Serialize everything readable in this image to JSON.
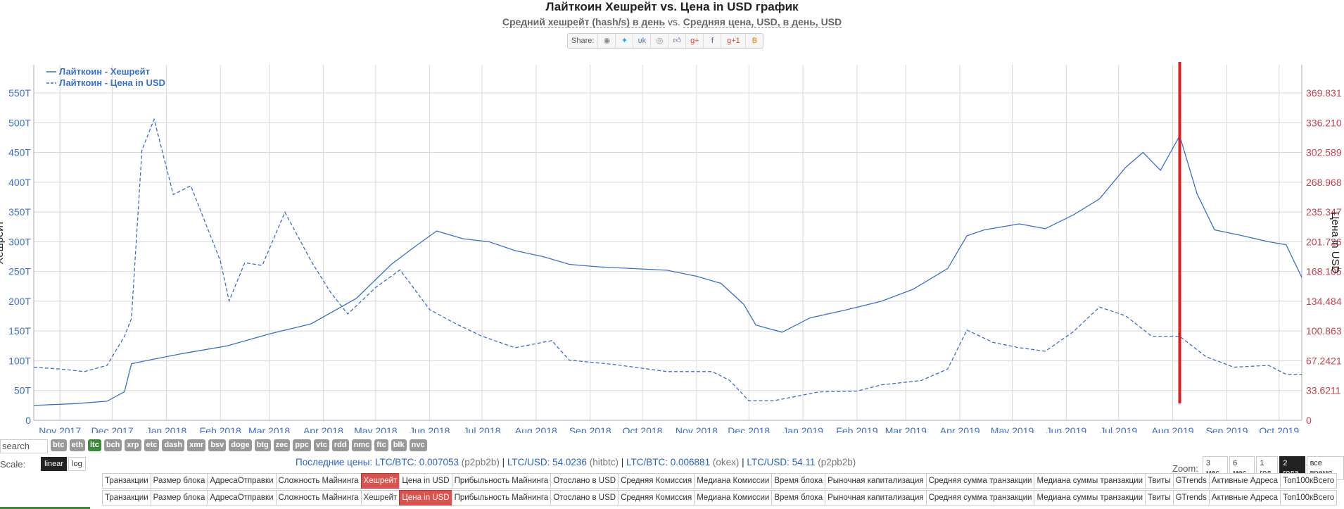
{
  "header": {
    "title": "Лайткоин Хешрейт vs. Цена in USD график",
    "subtitle_left": "Средний хешрейт (hash/s) в день",
    "subtitle_vs": "vs.",
    "subtitle_right": "Средняя цена, USD, в день, USD",
    "share_label": "Share:",
    "share_icons": [
      "reddit-icon",
      "twitter-icon",
      "vk-icon",
      "weibo-icon",
      "like-icon",
      "google-plus-icon",
      "facebook-icon",
      "google-plus-one-icon",
      "blogger-icon"
    ]
  },
  "chart_data": {
    "type": "line",
    "legend": [
      "Лайткоин - Хешрейт",
      "Лайткоин - Цена in USD"
    ],
    "legend_position": "top-left",
    "ylabel_left": "Хешрейт",
    "ylabel_right": "Цена in USD",
    "x_ticks": [
      "Nov 2017",
      "Dec 2017",
      "Jan 2018",
      "Feb 2018",
      "Mar 2018",
      "Apr 2018",
      "May 2018",
      "Jun 2018",
      "Jul 2018",
      "Aug 2018",
      "Sep 2018",
      "Oct 2018",
      "Nov 2018",
      "Dec 2018",
      "Jan 2019",
      "Feb 2019",
      "Mar 2019",
      "Apr 2019",
      "May 2019",
      "Jun 2019",
      "Jul 2019",
      "Aug 2019",
      "Sep 2019",
      "Oct 2019"
    ],
    "y_left_ticks": [
      "0",
      "50T",
      "100T",
      "150T",
      "200T",
      "250T",
      "300T",
      "350T",
      "400T",
      "450T",
      "500T",
      "550T"
    ],
    "y_right_ticks": [
      "0",
      "33.6211",
      "67.2421",
      "100.863",
      "134.484",
      "168.105",
      "201.726",
      "235.347",
      "268.968",
      "302.589",
      "336.210",
      "369.831"
    ],
    "y_left_range": [
      0,
      550
    ],
    "y_right_range": [
      0,
      369.831
    ],
    "x_range": [
      "2017-10-17",
      "2019-10-14"
    ],
    "grid": true,
    "marker_date": "2019-08-05",
    "series": [
      {
        "name": "Лайткоин - Хешрейт",
        "axis": "left",
        "unit": "TH/s",
        "style": "solid",
        "x": [
          "2017-10-17",
          "2017-11-10",
          "2017-11-28",
          "2017-12-08",
          "2017-12-12",
          "2017-12-20",
          "2018-01-10",
          "2018-02-05",
          "2018-03-01",
          "2018-03-25",
          "2018-04-20",
          "2018-05-10",
          "2018-05-25",
          "2018-06-05",
          "2018-06-20",
          "2018-07-05",
          "2018-07-20",
          "2018-08-05",
          "2018-08-20",
          "2018-09-05",
          "2018-09-25",
          "2018-10-15",
          "2018-11-01",
          "2018-11-15",
          "2018-11-28",
          "2018-12-05",
          "2018-12-20",
          "2019-01-05",
          "2019-01-25",
          "2019-02-15",
          "2019-03-05",
          "2019-03-25",
          "2019-04-05",
          "2019-04-15",
          "2019-05-05",
          "2019-05-20",
          "2019-06-05",
          "2019-06-20",
          "2019-07-05",
          "2019-07-15",
          "2019-07-25",
          "2019-08-05",
          "2019-08-15",
          "2019-08-25",
          "2019-09-10",
          "2019-09-25",
          "2019-10-05",
          "2019-10-14"
        ],
        "y": [
          25,
          28,
          32,
          48,
          95,
          100,
          112,
          125,
          145,
          162,
          205,
          262,
          295,
          318,
          305,
          300,
          285,
          275,
          262,
          258,
          255,
          252,
          242,
          230,
          195,
          160,
          148,
          172,
          185,
          200,
          220,
          255,
          310,
          320,
          330,
          322,
          345,
          372,
          425,
          450,
          420,
          478,
          380,
          320,
          310,
          300,
          295,
          240
        ]
      },
      {
        "name": "Лайткоин - Цена in USD",
        "axis": "right",
        "unit": "USD",
        "style": "dashed",
        "x": [
          "2017-10-17",
          "2017-11-01",
          "2017-11-15",
          "2017-11-28",
          "2017-12-08",
          "2017-12-12",
          "2017-12-18",
          "2017-12-25",
          "2018-01-05",
          "2018-01-15",
          "2018-02-01",
          "2018-02-06",
          "2018-02-15",
          "2018-02-25",
          "2018-03-10",
          "2018-03-25",
          "2018-04-05",
          "2018-04-15",
          "2018-05-01",
          "2018-05-15",
          "2018-06-01",
          "2018-06-15",
          "2018-07-01",
          "2018-07-20",
          "2018-08-10",
          "2018-08-20",
          "2018-09-15",
          "2018-10-15",
          "2018-11-10",
          "2018-11-20",
          "2018-12-01",
          "2018-12-15",
          "2019-01-10",
          "2019-02-01",
          "2019-02-15",
          "2019-03-10",
          "2019-03-25",
          "2019-04-05",
          "2019-04-20",
          "2019-05-05",
          "2019-05-20",
          "2019-06-05",
          "2019-06-20",
          "2019-07-05",
          "2019-07-20",
          "2019-08-05",
          "2019-08-20",
          "2019-09-05",
          "2019-09-25",
          "2019-10-05",
          "2019-10-14"
        ],
        "y": [
          60,
          58,
          55,
          62,
          95,
          115,
          305,
          340,
          255,
          265,
          180,
          135,
          178,
          175,
          235,
          180,
          145,
          120,
          150,
          170,
          125,
          110,
          95,
          82,
          90,
          68,
          63,
          55,
          55,
          45,
          22,
          22,
          32,
          33,
          40,
          45,
          58,
          102,
          88,
          82,
          78,
          100,
          128,
          118,
          95,
          95,
          72,
          60,
          62,
          52,
          52
        ]
      }
    ]
  },
  "controls": {
    "search_placeholder": "search",
    "coins": [
      "btc",
      "eth",
      "ltc",
      "bch",
      "xrp",
      "etc",
      "dash",
      "xmr",
      "bsv",
      "doge",
      "btg",
      "zec",
      "ppc",
      "vtc",
      "rdd",
      "nmc",
      "ftc",
      "blk",
      "nvc"
    ],
    "active_coin": "ltc",
    "scale_label": "Scale:",
    "scale_options": [
      "linear",
      "log"
    ],
    "active_scale": "linear",
    "zoom_label": "Zoom:",
    "zoom_options": [
      "3 мес.",
      "6 мес.",
      "1 год",
      "2 года",
      "все время"
    ],
    "active_zoom": "2 года"
  },
  "prices": {
    "label": "Последние цены:",
    "items": [
      {
        "pair": "LTC/BTC: 0.007053",
        "src": "(p2pb2b)"
      },
      {
        "pair": "LTC/USD: 54.0236",
        "src": "(hitbtc)"
      },
      {
        "pair": "LTC/BTC: 0.006881",
        "src": "(okex)"
      },
      {
        "pair": "LTC/USD: 54.11",
        "src": "(p2pb2b)"
      }
    ]
  },
  "tabs_row1": [
    "Транзакции",
    "Размер блока",
    "АдресаОтправки",
    "Сложность Майнинга",
    "Хешрейт",
    "Цена in USD",
    "Прибыльность Майнинга",
    "Отослано в USD",
    "Средняя Комиссия",
    "Медиана Комиссии",
    "Время блока",
    "Рыночная капитализация",
    "Средняя сумма транзакции",
    "Медиана суммы транзакции",
    "Твиты",
    "GTrends",
    "Активные Адреса",
    "Топ100кВсего"
  ],
  "tabs_row1_active": "Хешрейт",
  "tabs_row2": [
    "Транзакции",
    "Размер блока",
    "АдресаОтправки",
    "Сложность Майнинга",
    "Хешрейт",
    "Цена in USD",
    "Прибыльность Майнинга",
    "Отослано в USD",
    "Средняя Комиссия",
    "Медиана Комиссии",
    "Время блока",
    "Рыночная капитализация",
    "Средняя сумма транзакции",
    "Медиана суммы транзакции",
    "Твиты",
    "GTrends",
    "Активные Адреса",
    "Топ100кВсего"
  ],
  "tabs_row2_active": "Цена in USD",
  "colors": {
    "series": "#3a6fd0",
    "left_axis": "#3a6fd0",
    "right_axis": "#c8404a",
    "marker": "#d42020",
    "grid": "#d8d8d8"
  }
}
